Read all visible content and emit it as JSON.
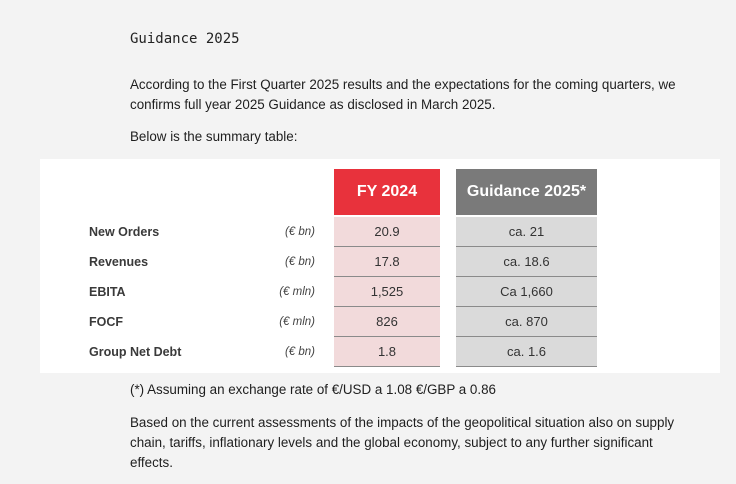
{
  "heading": "Guidance 2025",
  "para1": "According to the First Quarter 2025 results and the expectations for the coming quarters, we confirms full year 2025 Guidance as disclosed in March 2025.",
  "para2": "Below is the summary table:",
  "table": {
    "headers": {
      "fy": "FY 2024",
      "guidance": "Guidance 2025*"
    },
    "rows": [
      {
        "label": "New Orders",
        "unit": "(€ bn)",
        "fy": "20.9",
        "guidance": "ca. 21"
      },
      {
        "label": "Revenues",
        "unit": "(€ bn)",
        "fy": "17.8",
        "guidance": "ca. 18.6"
      },
      {
        "label": "EBITA",
        "unit": "(€ mln)",
        "fy": "1,525",
        "guidance": "Ca 1,660"
      },
      {
        "label": "FOCF",
        "unit": "(€ mln)",
        "fy": "826",
        "guidance": "ca. 870"
      },
      {
        "label": "Group Net Debt",
        "unit": "(€ bn)",
        "fy": "1.8",
        "guidance": "ca. 1.6"
      }
    ]
  },
  "footnote": "(*) Assuming an exchange rate of €/USD a 1.08  €/GBP a 0.86",
  "para3": "Based on the current assessments of the impacts of the geopolitical situation also on supply chain, tariffs, inflationary levels and the global economy, subject to any further significant effects.",
  "colors": {
    "fy_header": "#e8323c",
    "guidance_header": "#7a7a7a",
    "fy_cell": "#f2dadb",
    "guidance_cell": "#dadada"
  }
}
